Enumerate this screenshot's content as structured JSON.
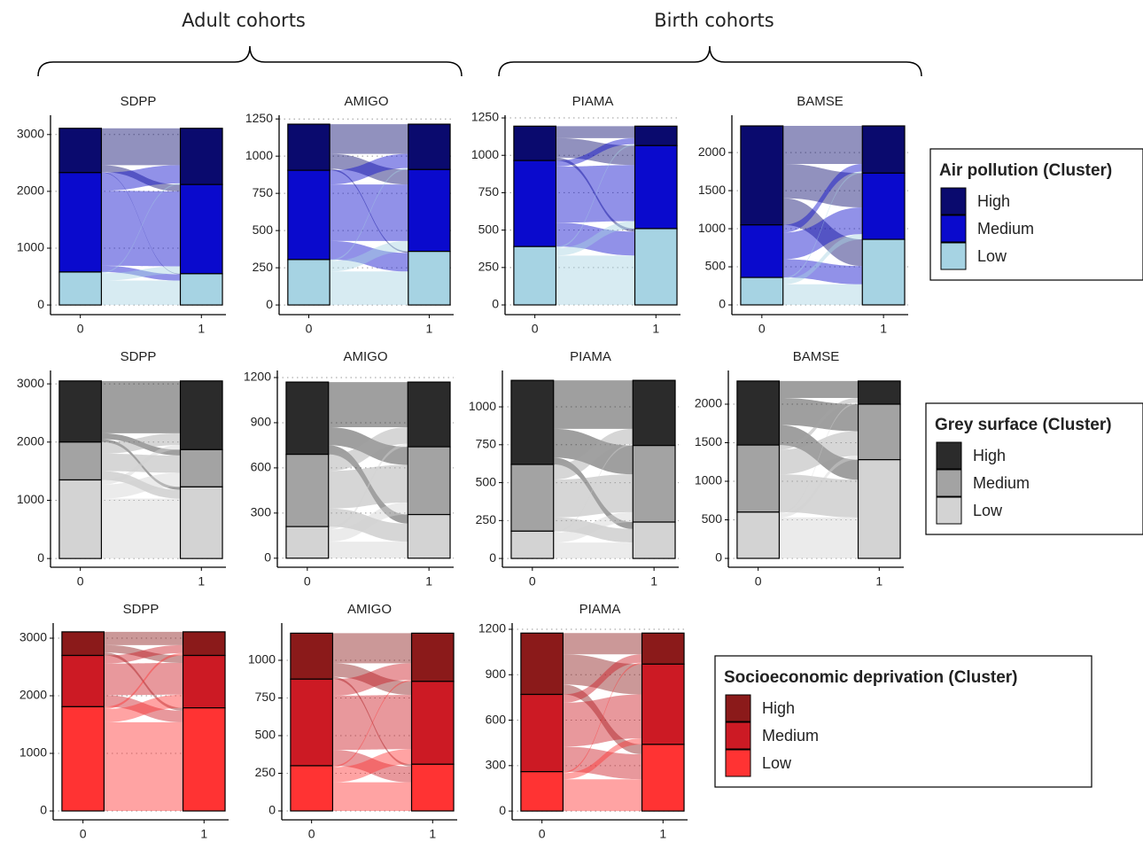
{
  "headings": [
    "Adult cohorts",
    "Birth cohorts"
  ],
  "chart_data": [
    {
      "type": "alluvial",
      "title": "SDPP",
      "legend_title": "Air pollution (Cluster)",
      "categories": [
        "0",
        "1"
      ],
      "grid": true,
      "ylim": [
        -170,
        3340
      ],
      "yticks": [
        0,
        1000,
        2000,
        3000
      ],
      "series": [
        {
          "name": "High",
          "color": "#0a0a6e",
          "values": [
            780,
            990
          ]
        },
        {
          "name": "Medium",
          "color": "#0a0acd",
          "values": [
            1750,
            1570
          ]
        },
        {
          "name": "Low",
          "color": "#a6d3e3",
          "values": [
            580,
            550
          ]
        }
      ],
      "flows": [
        [
          650,
          120,
          10
        ],
        [
          320,
          1320,
          110
        ],
        [
          20,
          130,
          430
        ]
      ]
    },
    {
      "type": "alluvial",
      "title": "AMIGO",
      "categories": [
        "0",
        "1"
      ],
      "grid": true,
      "ylim": [
        -65,
        1275
      ],
      "yticks": [
        0,
        250,
        500,
        750,
        1000,
        1250
      ],
      "series": [
        {
          "color": "#0a0a6e",
          "values": [
            310,
            305
          ]
        },
        {
          "color": "#0a0acd",
          "values": [
            600,
            550
          ]
        },
        {
          "color": "#a6d3e3",
          "values": [
            305,
            360
          ]
        }
      ],
      "flows": [
        [
          200,
          100,
          10
        ],
        [
          95,
          380,
          125
        ],
        [
          10,
          70,
          225
        ]
      ]
    },
    {
      "type": "alluvial",
      "title": "PIAMA",
      "categories": [
        "0",
        "1"
      ],
      "grid": true,
      "ylim": [
        -65,
        1268
      ],
      "yticks": [
        0,
        250,
        500,
        750,
        1000,
        1250
      ],
      "series": [
        {
          "color": "#0a0a6e",
          "values": [
            230,
            130
          ]
        },
        {
          "color": "#0a0acd",
          "values": [
            575,
            555
          ]
        },
        {
          "color": "#a6d3e3",
          "values": [
            390,
            510
          ]
        }
      ],
      "flows": [
        [
          80,
          130,
          20
        ],
        [
          40,
          375,
          160
        ],
        [
          10,
          50,
          330
        ]
      ]
    },
    {
      "type": "alluvial",
      "title": "BAMSE",
      "categories": [
        "0",
        "1"
      ],
      "grid": true,
      "ylim": [
        -128,
        2490
      ],
      "yticks": [
        0,
        500,
        1000,
        1500,
        2000
      ],
      "series": [
        {
          "color": "#0a0a6e",
          "values": [
            1300,
            620
          ]
        },
        {
          "color": "#0a0acd",
          "values": [
            690,
            870
          ]
        },
        {
          "color": "#a6d3e3",
          "values": [
            360,
            860
          ]
        }
      ],
      "flows": [
        [
          500,
          450,
          350
        ],
        [
          100,
          350,
          240
        ],
        [
          20,
          70,
          270
        ]
      ]
    },
    {
      "type": "alluvial",
      "title": "SDPP",
      "legend_title": "Grey surface (Cluster)",
      "categories": [
        "0",
        "1"
      ],
      "grid": true,
      "ylim": [
        -150,
        3230
      ],
      "yticks": [
        0,
        1000,
        2000,
        3000
      ],
      "series": [
        {
          "name": "High",
          "color": "#2b2b2b",
          "values": [
            1050,
            1180
          ]
        },
        {
          "name": "Medium",
          "color": "#a3a3a3",
          "values": [
            650,
            640
          ]
        },
        {
          "name": "Low",
          "color": "#d3d3d3",
          "values": [
            1350,
            1230
          ]
        }
      ],
      "flows": [
        [
          900,
          100,
          50
        ],
        [
          200,
          300,
          150
        ],
        [
          80,
          240,
          1030
        ]
      ]
    },
    {
      "type": "alluvial",
      "title": "AMIGO",
      "categories": [
        "0",
        "1"
      ],
      "grid": true,
      "ylim": [
        -60,
        1247
      ],
      "yticks": [
        0,
        300,
        600,
        900,
        1200
      ],
      "series": [
        {
          "color": "#2b2b2b",
          "values": [
            480,
            430
          ]
        },
        {
          "color": "#a3a3a3",
          "values": [
            480,
            450
          ]
        },
        {
          "color": "#d3d3d3",
          "values": [
            210,
            290
          ]
        }
      ],
      "flows": [
        [
          300,
          120,
          60
        ],
        [
          110,
          250,
          120
        ],
        [
          20,
          80,
          110
        ]
      ]
    },
    {
      "type": "alluvial",
      "title": "PIAMA",
      "categories": [
        "0",
        "1"
      ],
      "grid": true,
      "ylim": [
        -58,
        1240
      ],
      "yticks": [
        0,
        250,
        500,
        750,
        1000
      ],
      "series": [
        {
          "color": "#2b2b2b",
          "values": [
            555,
            430
          ]
        },
        {
          "color": "#a3a3a3",
          "values": [
            440,
            505
          ]
        },
        {
          "color": "#d3d3d3",
          "values": [
            180,
            240
          ]
        }
      ],
      "flows": [
        [
          320,
          190,
          45
        ],
        [
          100,
          250,
          90
        ],
        [
          10,
          65,
          105
        ]
      ]
    },
    {
      "type": "alluvial",
      "title": "BAMSE",
      "categories": [
        "0",
        "1"
      ],
      "grid": true,
      "ylim": [
        -115,
        2437
      ],
      "yticks": [
        0,
        500,
        1000,
        1500,
        2000
      ],
      "series": [
        {
          "color": "#2b2b2b",
          "values": [
            830,
            300
          ]
        },
        {
          "color": "#a3a3a3",
          "values": [
            870,
            720
          ]
        },
        {
          "color": "#d3d3d3",
          "values": [
            600,
            1280
          ]
        }
      ],
      "flows": [
        [
          220,
          350,
          260
        ],
        [
          60,
          320,
          490
        ],
        [
          20,
          50,
          530
        ]
      ]
    },
    {
      "type": "alluvial",
      "title": "SDPP",
      "legend_title": "Socioeconomic deprivation (Cluster)",
      "categories": [
        "0",
        "1"
      ],
      "grid": true,
      "ylim": [
        -154,
        3262
      ],
      "yticks": [
        0,
        1000,
        2000,
        3000
      ],
      "series": [
        {
          "name": "High",
          "color": "#8b1a1a",
          "values": [
            410,
            410
          ]
        },
        {
          "name": "Medium",
          "color": "#cc1a24",
          "values": [
            890,
            910
          ]
        },
        {
          "name": "Low",
          "color": "#ff3333",
          "values": [
            1810,
            1790
          ]
        }
      ],
      "flows": [
        [
          230,
          130,
          50
        ],
        [
          140,
          550,
          200
        ],
        [
          40,
          230,
          1540
        ]
      ]
    },
    {
      "type": "alluvial",
      "title": "AMIGO",
      "categories": [
        "0",
        "1"
      ],
      "grid": true,
      "ylim": [
        -59,
        1247
      ],
      "yticks": [
        0,
        250,
        500,
        750,
        1000
      ],
      "series": [
        {
          "color": "#8b1a1a",
          "values": [
            305,
            320
          ]
        },
        {
          "color": "#cc1a24",
          "values": [
            575,
            550
          ]
        },
        {
          "color": "#ff3333",
          "values": [
            300,
            310
          ]
        }
      ],
      "flows": [
        [
          200,
          90,
          15
        ],
        [
          110,
          360,
          105
        ],
        [
          10,
          100,
          190
        ]
      ]
    },
    {
      "type": "alluvial",
      "title": "PIAMA",
      "categories": [
        "0",
        "1"
      ],
      "grid": true,
      "ylim": [
        -58,
        1241
      ],
      "yticks": [
        0,
        300,
        600,
        900,
        1200
      ],
      "series": [
        {
          "color": "#8b1a1a",
          "values": [
            405,
            205
          ]
        },
        {
          "color": "#cc1a24",
          "values": [
            510,
            530
          ]
        },
        {
          "color": "#ff3333",
          "values": [
            260,
            440
          ]
        }
      ],
      "flows": [
        [
          140,
          200,
          65
        ],
        [
          55,
          290,
          165
        ],
        [
          10,
          40,
          210
        ]
      ]
    }
  ]
}
